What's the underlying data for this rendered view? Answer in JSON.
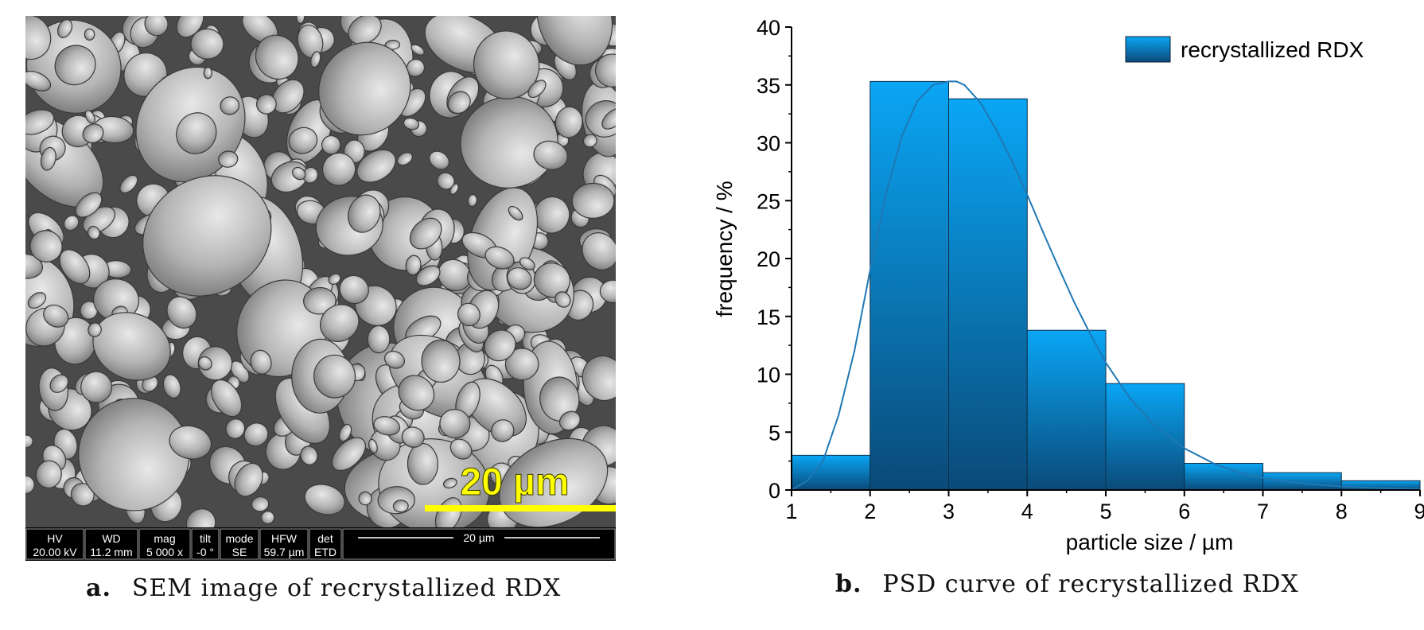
{
  "sem": {
    "scale_label": "20 µm",
    "databar_scale": "20 µm",
    "databar": [
      {
        "header": "HV",
        "value": "20.00 kV"
      },
      {
        "header": "WD",
        "value": "11.2 mm"
      },
      {
        "header": "mag",
        "value": "5 000 x"
      },
      {
        "header": "tilt",
        "value": "-0 °"
      },
      {
        "header": "mode",
        "value": "SE"
      },
      {
        "header": "HFW",
        "value": "59.7 µm"
      },
      {
        "header": "det",
        "value": "ETD"
      }
    ],
    "colors": {
      "scale_bar": "#ffff00",
      "background": "#4a4a4a",
      "databar": "#000000"
    }
  },
  "captions": {
    "a_letter": "a.",
    "a_text": "SEM image of recrystallized RDX",
    "b_letter": "b.",
    "b_text": "PSD curve of recrystallized RDX"
  },
  "chart_data": {
    "type": "bar",
    "title": "",
    "xlabel": "particle size / µm",
    "ylabel": "frequency / %",
    "xlim": [
      1,
      9
    ],
    "ylim": [
      0,
      40
    ],
    "xticks": [
      1,
      2,
      3,
      4,
      5,
      6,
      7,
      8,
      9
    ],
    "yticks": [
      0,
      5,
      10,
      15,
      20,
      25,
      30,
      35,
      40
    ],
    "bins": [
      {
        "from": 1,
        "to": 2,
        "value": 3.0
      },
      {
        "from": 2,
        "to": 3,
        "value": 35.3
      },
      {
        "from": 3,
        "to": 4,
        "value": 33.8
      },
      {
        "from": 4,
        "to": 5,
        "value": 13.8
      },
      {
        "from": 5,
        "to": 6,
        "value": 9.2
      },
      {
        "from": 6,
        "to": 7,
        "value": 2.3
      },
      {
        "from": 7,
        "to": 8,
        "value": 1.5
      },
      {
        "from": 8,
        "to": 9,
        "value": 0.8
      }
    ],
    "fit_curve": {
      "x": [
        1.0,
        1.2,
        1.4,
        1.6,
        1.8,
        2.0,
        2.2,
        2.4,
        2.6,
        2.8,
        3.0,
        3.1,
        3.2,
        3.4,
        3.6,
        3.8,
        4.0,
        4.2,
        4.4,
        4.6,
        4.8,
        5.0,
        5.3,
        5.6,
        6.0,
        6.4,
        6.8,
        7.2,
        7.6,
        8.0,
        8.5,
        9.0
      ],
      "y": [
        0.0,
        0.8,
        2.5,
        6.5,
        12.0,
        19.0,
        25.5,
        30.5,
        33.6,
        35.0,
        35.3,
        35.3,
        35.0,
        33.5,
        31.2,
        28.5,
        25.5,
        22.3,
        19.2,
        16.2,
        13.5,
        11.0,
        8.0,
        5.7,
        3.6,
        2.2,
        1.3,
        0.8,
        0.5,
        0.3,
        0.15,
        0.08
      ]
    },
    "legend": {
      "label": "recrystallized RDX",
      "position": "top-right"
    },
    "colors": {
      "bar_top": "#0aa6f5",
      "bar_bottom": "#0a4a78",
      "curve": "#1f78b4",
      "axis": "#000000"
    }
  }
}
